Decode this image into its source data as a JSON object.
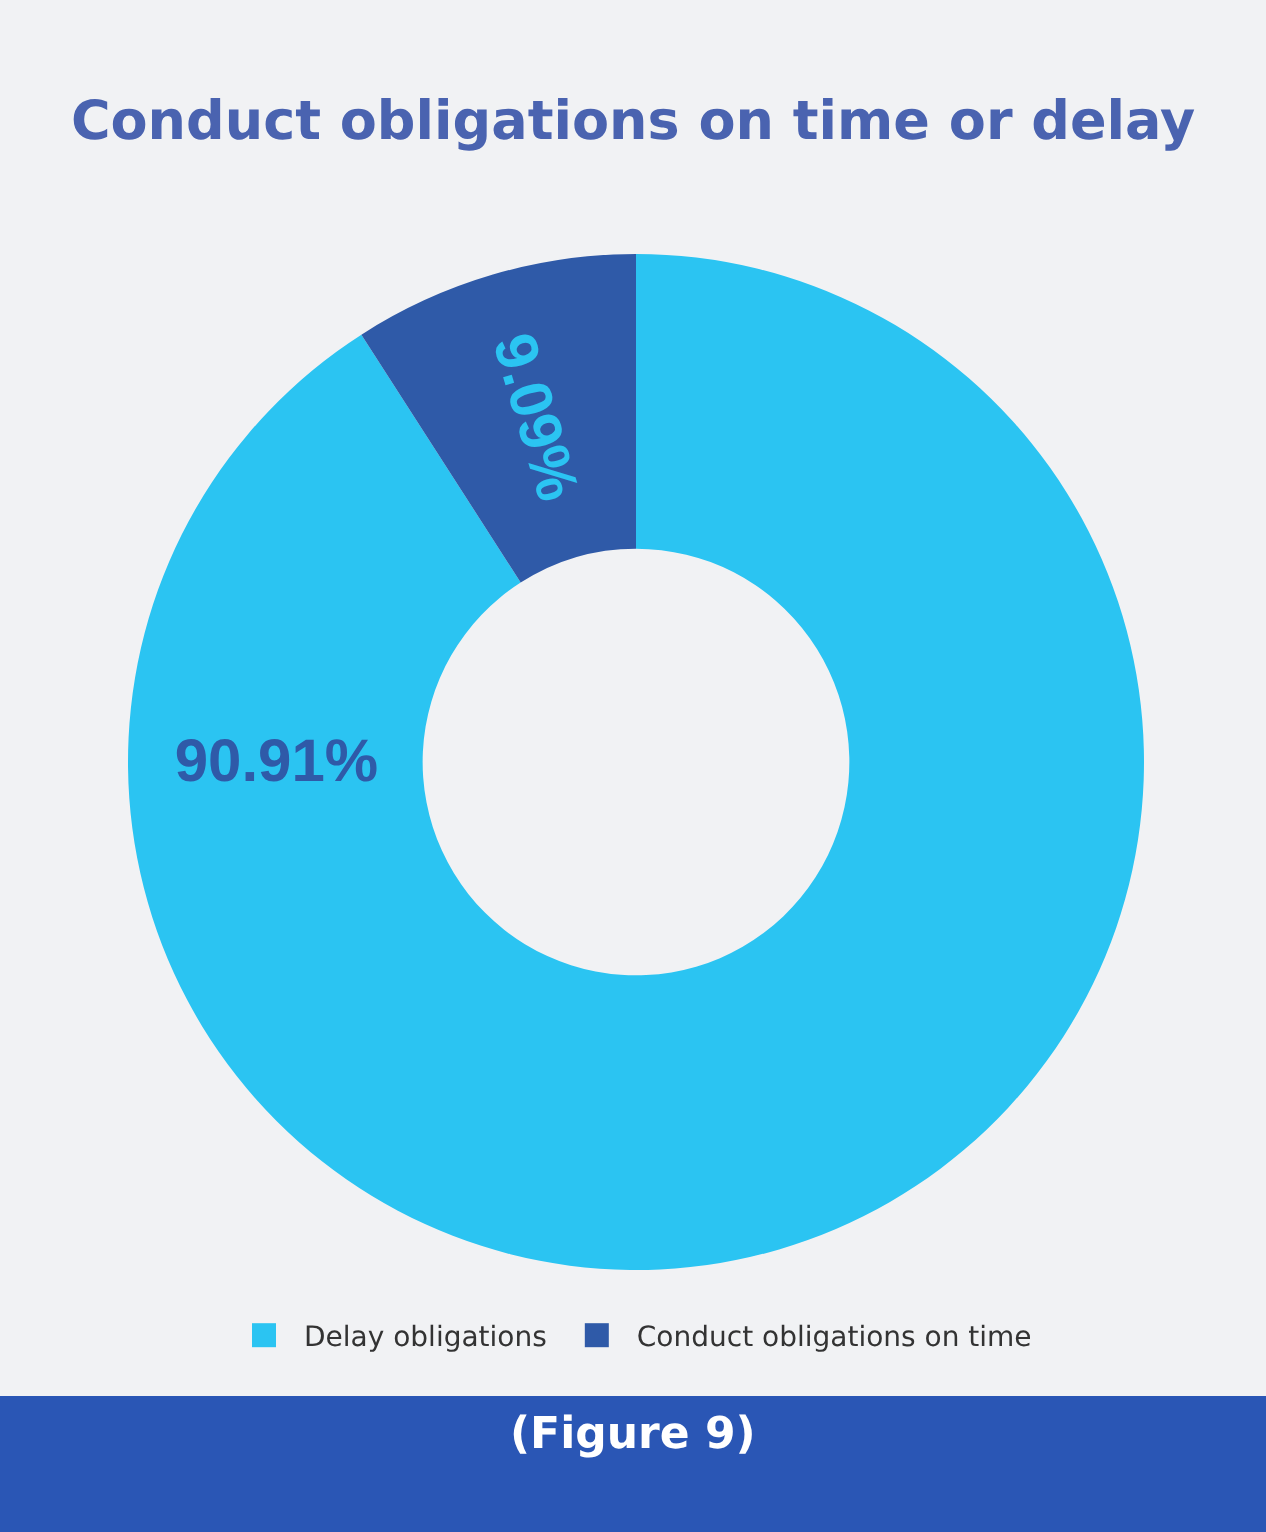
{
  "chart_data": {
    "type": "donut",
    "title": "Conduct obligations on time or delay",
    "categories": [
      "Delay obligations",
      "Conduct obligations on time"
    ],
    "values": [
      90.91,
      9.09
    ],
    "colors": [
      "#2bc4f2",
      "#2f5aa8"
    ],
    "value_labels": [
      "90.91%",
      "9.09%"
    ],
    "legend": "bottom",
    "annotations": [
      "(Figure 9)"
    ]
  }
}
